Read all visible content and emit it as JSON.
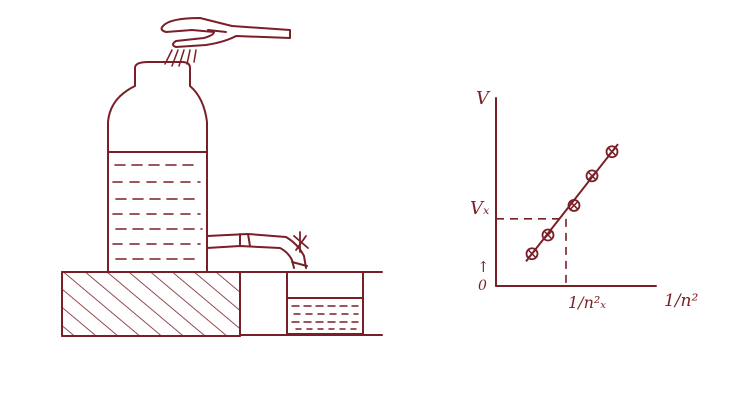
{
  "ink_color": "#7a1f28",
  "apparatus": {
    "tuning_fork": "tuning-fork",
    "bottle": "bottle-resonator",
    "water_level_marks": 7,
    "outlet": "outlet-tube-with-pinch-clip",
    "stand": "hatched-block",
    "beaker": "collecting-beaker"
  },
  "graph": {
    "y_axis_label": "V",
    "x_axis_label": "1/n²",
    "y_marker_label": "Vₓ",
    "x_marker_label": "1/n²ₓ",
    "origin_label": "0",
    "arrow_label": "↑",
    "points": [
      {
        "x": 1.8,
        "y": 1.2
      },
      {
        "x": 2.6,
        "y": 1.9
      },
      {
        "x": 3.9,
        "y": 3.0
      },
      {
        "x": 4.8,
        "y": 4.1
      },
      {
        "x": 5.8,
        "y": 5.0
      }
    ],
    "marker": {
      "x": 3.5,
      "y": 2.5
    },
    "x_range": [
      0,
      8
    ],
    "y_range": [
      0,
      7
    ]
  }
}
